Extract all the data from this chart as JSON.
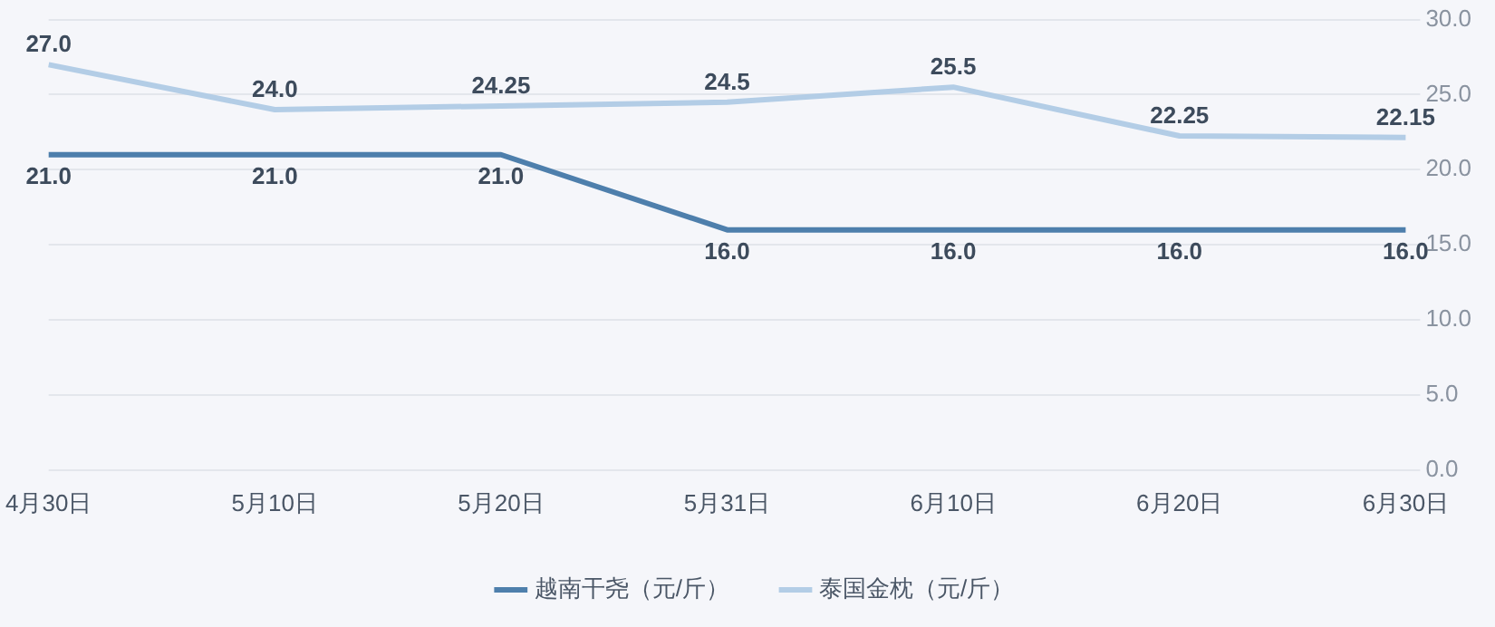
{
  "chart_data": {
    "type": "line",
    "categories": [
      "4月30日",
      "5月10日",
      "5月20日",
      "5月31日",
      "6月10日",
      "6月20日",
      "6月30日"
    ],
    "series": [
      {
        "name": "越南干尧（元/斤）",
        "color": "#4e7fac",
        "values": [
          21,
          21,
          21,
          16,
          16,
          16,
          16
        ],
        "value_labels": [
          "21.0",
          "21.0",
          "21.0",
          "16.0",
          "16.0",
          "16.0",
          "16.0"
        ]
      },
      {
        "name": "泰国金枕（元/斤）",
        "color": "#b3cde6",
        "values": [
          27,
          24,
          24.25,
          24.5,
          25.5,
          22.25,
          22.15
        ],
        "value_labels": [
          "27.0",
          "24.0",
          "24.25",
          "24.5",
          "25.5",
          "22.25",
          "22.15"
        ]
      }
    ],
    "ylim": [
      0,
      30
    ],
    "yticks": [
      {
        "value": 0,
        "label": "0.0"
      },
      {
        "value": 5,
        "label": "5.0"
      },
      {
        "value": 10,
        "label": "10.0"
      },
      {
        "value": 15,
        "label": "15.0"
      },
      {
        "value": 20,
        "label": "20.0"
      },
      {
        "value": 25,
        "label": "25.0"
      },
      {
        "value": 30,
        "label": "30.0"
      }
    ],
    "grid": "y",
    "legend": "bottom",
    "marker": "none",
    "line_style": "solid"
  }
}
